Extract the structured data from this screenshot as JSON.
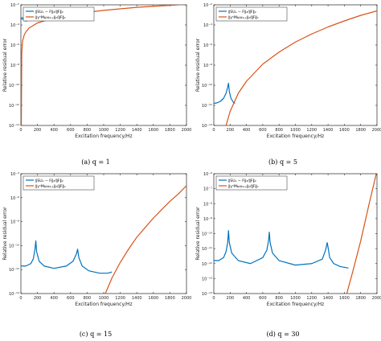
{
  "chart_data": [
    {
      "type": "line",
      "caption": "(a) q = 1",
      "xlabel": "Excitation frequency/Hz",
      "ylabel": "Relative residual error",
      "xlim": [
        0,
        2000
      ],
      "ylim_exp": [
        -14,
        -2
      ],
      "yscale": "log",
      "x_ticks": [
        "0",
        "200",
        "400",
        "600",
        "800",
        "1000",
        "1200",
        "1400",
        "1600",
        "1800",
        "2000"
      ],
      "y_ticks": [
        "10⁻¹⁴",
        "10⁻¹²",
        "10⁻¹⁰",
        "10⁻⁸",
        "10⁻⁶",
        "10⁻⁴",
        "10⁻²"
      ],
      "legend": [
        "‖SUₑ − F‖₂/‖F‖₂",
        "‖γⁿMωu₂,ₑ‖₂/‖F‖₂"
      ],
      "series": [
        {
          "color": "#0072BD",
          "x": [
            0,
            10,
            20,
            30,
            50,
            80
          ],
          "log10_y": [
            -3.5,
            -3.3,
            -3.3,
            -3.5,
            -3.6,
            -3.6
          ]
        },
        {
          "color": "#D95319",
          "x": [
            5,
            10,
            20,
            40,
            60,
            100,
            200,
            400,
            600,
            800,
            1000,
            1200,
            1400,
            1600,
            1800,
            2000
          ],
          "log10_y": [
            -14,
            -6.8,
            -5.6,
            -5.0,
            -4.7,
            -4.3,
            -3.8,
            -3.3,
            -3.0,
            -2.75,
            -2.55,
            -2.4,
            -2.25,
            -2.15,
            -2.05,
            -1.95
          ]
        }
      ]
    },
    {
      "type": "line",
      "caption": "(b) q = 5",
      "xlabel": "Excitation frequency/Hz",
      "ylabel": "Relative residual error",
      "xlim": [
        0,
        2000
      ],
      "ylim_exp": [
        -14,
        -2
      ],
      "yscale": "log",
      "x_ticks": [
        "0",
        "200",
        "400",
        "600",
        "800",
        "1000",
        "1200",
        "1400",
        "1600",
        "1800",
        "2000"
      ],
      "y_ticks": [
        "10⁻¹⁴",
        "10⁻¹²",
        "10⁻¹⁰",
        "10⁻⁸",
        "10⁻⁶",
        "10⁻⁴",
        "10⁻²"
      ],
      "legend": [
        "‖SUₑ − F‖₂/‖F‖₂",
        "‖γⁿMωu₂,ₑ‖₂/‖F‖₂"
      ],
      "series": [
        {
          "color": "#0072BD",
          "x": [
            0,
            40,
            80,
            120,
            150,
            170,
            180,
            190,
            210,
            240,
            260
          ],
          "log10_y": [
            -11.8,
            -11.75,
            -11.6,
            -11.3,
            -10.8,
            -10.2,
            -9.8,
            -10.6,
            -11.3,
            -11.7,
            -11.8
          ]
        },
        {
          "color": "#D95319",
          "x": [
            150,
            200,
            300,
            400,
            600,
            800,
            1000,
            1200,
            1400,
            1600,
            1800,
            2000
          ],
          "log10_y": [
            -14,
            -12.6,
            -10.8,
            -9.6,
            -7.9,
            -6.7,
            -5.7,
            -4.9,
            -4.2,
            -3.6,
            -3.05,
            -2.6
          ]
        }
      ]
    },
    {
      "type": "line",
      "caption": "(c) q = 15",
      "xlabel": "Excitation frequency/Hz",
      "ylabel": "Relative residual error",
      "xlim": [
        0,
        2000
      ],
      "ylim_exp": [
        -14,
        -4
      ],
      "yscale": "log",
      "x_ticks": [
        "0",
        "200",
        "400",
        "600",
        "800",
        "1000",
        "1200",
        "1400",
        "1600",
        "1800",
        "2000"
      ],
      "y_ticks": [
        "10⁻¹⁴",
        "10⁻¹²",
        "10⁻¹⁰",
        "10⁻⁸",
        "10⁻⁶",
        "10⁻⁴"
      ],
      "legend": [
        "‖SUₑ − F‖₂/‖F‖₂",
        "‖γⁿMωu₂,ₑ‖₂/‖F‖₂"
      ],
      "series": [
        {
          "color": "#0072BD",
          "x": [
            0,
            60,
            120,
            150,
            170,
            180,
            190,
            220,
            280,
            400,
            550,
            630,
            670,
            685,
            700,
            740,
            820,
            950,
            1050,
            1100
          ],
          "log10_y": [
            -11.7,
            -11.7,
            -11.5,
            -11.1,
            -10.3,
            -9.6,
            -10.5,
            -11.3,
            -11.7,
            -11.9,
            -11.7,
            -11.3,
            -10.7,
            -10.3,
            -11.0,
            -11.7,
            -12.1,
            -12.3,
            -12.3,
            -12.2
          ]
        },
        {
          "color": "#D95319",
          "x": [
            1020,
            1100,
            1200,
            1300,
            1400,
            1500,
            1600,
            1700,
            1800,
            1900,
            2000
          ],
          "log10_y": [
            -14,
            -12.7,
            -11.4,
            -10.3,
            -9.3,
            -8.5,
            -7.7,
            -7.0,
            -6.3,
            -5.7,
            -5.0
          ]
        }
      ]
    },
    {
      "type": "line",
      "caption": "(d) q = 30",
      "xlabel": "Excitation frequency/Hz",
      "ylabel": "Relative residual error",
      "xlim": [
        0,
        2000
      ],
      "ylim_exp": [
        -14,
        -6
      ],
      "yscale": "log",
      "x_ticks": [
        "0",
        "200",
        "400",
        "600",
        "800",
        "1000",
        "1200",
        "1400",
        "1600",
        "1800",
        "2000"
      ],
      "y_ticks": [
        "10⁻¹⁴",
        "10⁻¹³",
        "10⁻¹²",
        "10⁻¹¹",
        "10⁻¹⁰",
        "10⁻⁹",
        "10⁻⁸",
        "10⁻⁷",
        "10⁻⁶"
      ],
      "legend": [
        "‖SUₑ − F‖₂/‖F‖₂",
        "‖γⁿMωu₂,ₑ‖₂/‖F‖₂"
      ],
      "series": [
        {
          "color": "#0072BD",
          "x": [
            0,
            60,
            120,
            150,
            170,
            180,
            190,
            220,
            300,
            450,
            600,
            650,
            670,
            680,
            690,
            720,
            800,
            1000,
            1200,
            1330,
            1370,
            1390,
            1400,
            1420,
            1470,
            1550,
            1650
          ],
          "log10_y": [
            -11.8,
            -11.8,
            -11.6,
            -11.2,
            -10.6,
            -9.8,
            -10.6,
            -11.3,
            -11.8,
            -12.0,
            -11.6,
            -11.1,
            -10.5,
            -9.9,
            -10.6,
            -11.3,
            -11.8,
            -12.1,
            -12.0,
            -11.7,
            -11.1,
            -10.6,
            -10.9,
            -11.6,
            -12.0,
            -12.2,
            -12.3
          ]
        },
        {
          "color": "#D95319",
          "x": [
            1630,
            1700,
            1800,
            1900,
            2000
          ],
          "log10_y": [
            -14,
            -12.6,
            -10.5,
            -8.1,
            -5.8
          ]
        }
      ]
    }
  ]
}
